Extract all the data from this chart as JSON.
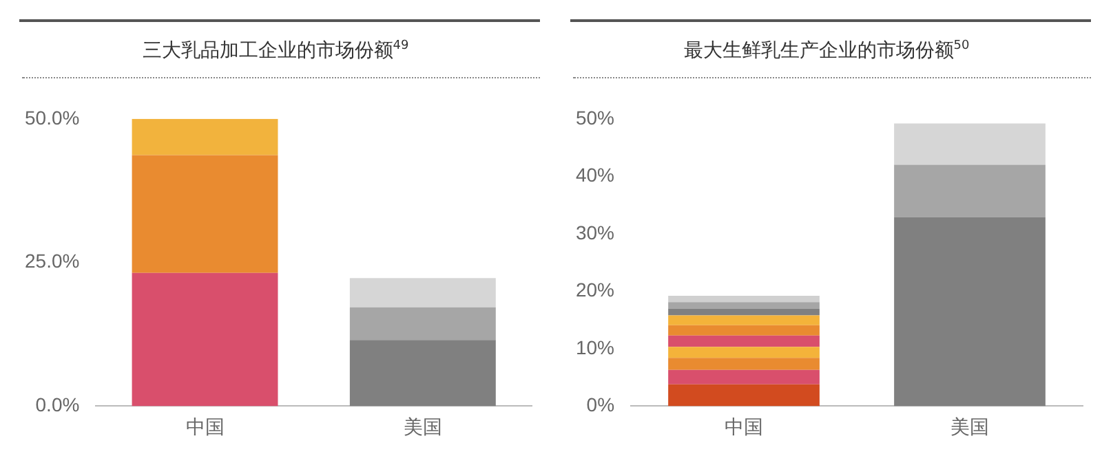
{
  "chart_data": [
    {
      "type": "bar",
      "title": "三大乳品加工企业的市场份额$^{49}$",
      "categories": [
        "中国",
        "美国"
      ],
      "stacked": true,
      "ylim": [
        0,
        50
      ],
      "yticks": [
        {
          "value": 0,
          "label": "0.0%"
        },
        {
          "value": 25,
          "label": "25.0%"
        },
        {
          "value": 50,
          "label": "50.0%"
        }
      ],
      "series": [
        {
          "color": "#d94f6c",
          "values": [
            23.2,
            null
          ]
        },
        {
          "color": "#e98b30",
          "values": [
            20.5,
            null
          ]
        },
        {
          "color": "#f2b33d",
          "values": [
            6.3,
            null
          ]
        },
        {
          "color": "#808080",
          "values": [
            null,
            11.5
          ]
        },
        {
          "color": "#a6a6a6",
          "values": [
            null,
            5.7
          ]
        },
        {
          "color": "#d6d6d6",
          "values": [
            null,
            5.1
          ]
        }
      ]
    },
    {
      "type": "bar",
      "title": "最大生鲜乳生产企业的市场份额$^{50}$",
      "categories": [
        "中国",
        "美国"
      ],
      "stacked": true,
      "ylim": [
        0,
        50
      ],
      "yticks": [
        {
          "value": 0,
          "label": "0%"
        },
        {
          "value": 10,
          "label": "10%"
        },
        {
          "value": 20,
          "label": "20%"
        },
        {
          "value": 30,
          "label": "30%"
        },
        {
          "value": 40,
          "label": "40%"
        },
        {
          "value": 50,
          "label": "50%"
        }
      ],
      "series": [
        {
          "color": "#d24b1f",
          "values": [
            3.8,
            null
          ]
        },
        {
          "color": "#d94f6c",
          "values": [
            2.5,
            null
          ]
        },
        {
          "color": "#e98b30",
          "values": [
            2.1,
            null
          ]
        },
        {
          "color": "#f4b33a",
          "values": [
            1.9,
            null
          ]
        },
        {
          "color": "#d94f6c",
          "values": [
            2.0,
            null
          ]
        },
        {
          "color": "#e98b30",
          "values": [
            1.8,
            null
          ]
        },
        {
          "color": "#f4b33a",
          "values": [
            1.7,
            null
          ]
        },
        {
          "color": "#808080",
          "values": [
            1.2,
            null
          ]
        },
        {
          "color": "#a6a6a6",
          "values": [
            1.1,
            null
          ]
        },
        {
          "color": "#d0d0d0",
          "values": [
            1.1,
            null
          ]
        },
        {
          "color": "#808080",
          "values": [
            null,
            32.9
          ]
        },
        {
          "color": "#a6a6a6",
          "values": [
            null,
            9.1
          ]
        },
        {
          "color": "#d6d6d6",
          "values": [
            null,
            7.2
          ]
        }
      ]
    }
  ]
}
